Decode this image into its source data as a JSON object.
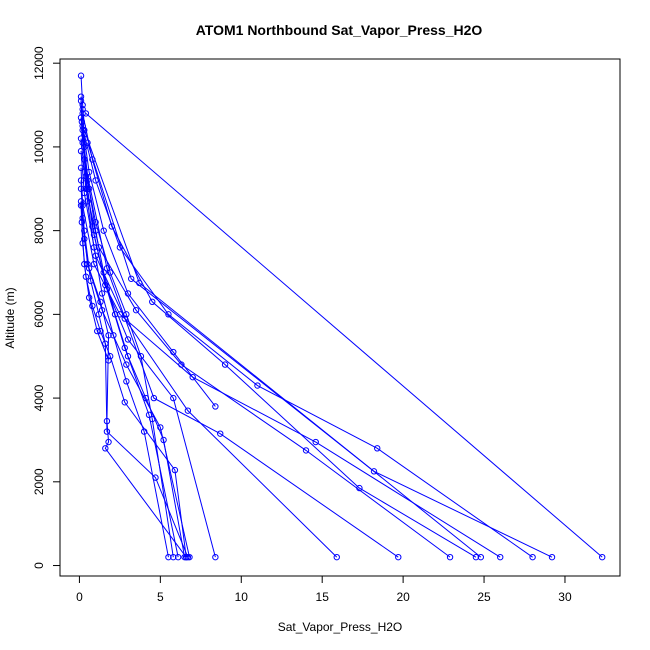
{
  "chart_data": {
    "type": "line",
    "title": "ATOM1 Northbound Sat_Vapor_Press_H2O",
    "xlabel": "Sat_Vapor_Press_H2O",
    "ylabel": "Altitude (m)",
    "xlim": [
      -1.2,
      33.4
    ],
    "ylim": [
      -250,
      12100
    ],
    "x_ticks": [
      0,
      5,
      10,
      15,
      20,
      25,
      30
    ],
    "y_ticks": [
      0,
      2000,
      4000,
      6000,
      8000,
      10000,
      12000
    ],
    "marker": "open-circle",
    "color": "#0000ff",
    "grid": false,
    "legend": "none",
    "series": [
      {
        "x": [
          0.1,
          0.2,
          0.3,
          0.6,
          1.0,
          1.5,
          2.2,
          3.0,
          4.1,
          5.2,
          6.5
        ],
        "y": [
          11700,
          11000,
          10000,
          9000,
          8000,
          7000,
          6000,
          5000,
          4000,
          3000,
          200
        ]
      },
      {
        "x": [
          0.1,
          0.15,
          0.3,
          0.5,
          0.9,
          1.4,
          2.1,
          2.9,
          4.0,
          5.5
        ],
        "y": [
          11200,
          10600,
          9700,
          8700,
          7600,
          6500,
          5500,
          4400,
          3200,
          200
        ]
      },
      {
        "x": [
          0.1,
          0.2,
          0.4,
          0.8,
          1.6,
          3.0,
          5.8,
          8.4
        ],
        "y": [
          11100,
          10400,
          9300,
          8100,
          6700,
          5400,
          4000,
          200
        ]
      },
      {
        "x": [
          0.2,
          0.3,
          0.5,
          0.9,
          1.7,
          2.8,
          4.3,
          6.1
        ],
        "y": [
          10900,
          10000,
          9000,
          7900,
          6600,
          5200,
          3600,
          200
        ]
      },
      {
        "x": [
          0.1,
          0.2,
          0.5,
          1.0,
          1.9,
          2.9,
          3.8,
          4.5,
          5.8
        ],
        "y": [
          10700,
          10100,
          9200,
          8200,
          7000,
          6000,
          5000,
          3500,
          200
        ]
      },
      {
        "x": [
          0.2,
          0.6,
          1.5,
          3.0,
          5.8,
          8.4
        ],
        "y": [
          10500,
          9400,
          8000,
          6500,
          5100,
          3800
        ]
      },
      {
        "x": [
          0.3,
          1.0,
          2.5,
          5.5,
          11.0,
          18.4,
          28.0
        ],
        "y": [
          10300,
          9200,
          7600,
          6000,
          4300,
          2800,
          200
        ]
      },
      {
        "x": [
          0.2,
          0.8,
          2.0,
          4.5,
          9.0,
          17.3,
          24.5
        ],
        "y": [
          10800,
          9700,
          8100,
          6300,
          4800,
          1850,
          200
        ]
      },
      {
        "x": [
          0.1,
          0.4,
          1.2,
          3.5,
          6.3,
          14.0,
          22.9
        ],
        "y": [
          10200,
          9000,
          7600,
          6100,
          4800,
          2750,
          200
        ]
      },
      {
        "x": [
          0.1,
          0.3,
          1.0,
          2.8,
          6.7,
          15.9
        ],
        "y": [
          9900,
          8900,
          7400,
          5900,
          3700,
          200
        ]
      },
      {
        "x": [
          0.3,
          1.7,
          4.6,
          8.7,
          19.7
        ],
        "y": [
          9700,
          7100,
          4000,
          3150,
          200
        ]
      },
      {
        "x": [
          0.1,
          0.2,
          0.9,
          2.5,
          7.0,
          14.6,
          26.0
        ],
        "y": [
          9500,
          8600,
          7200,
          6000,
          4500,
          2950,
          200
        ]
      },
      {
        "x": [
          0.5,
          3.2,
          18.2,
          29.2
        ],
        "y": [
          10100,
          6850,
          2250,
          200
        ]
      },
      {
        "x": [
          0.3,
          3.7,
          24.8
        ],
        "y": [
          10400,
          6750,
          200
        ]
      },
      {
        "x": [
          0.4,
          32.3
        ],
        "y": [
          10800,
          200
        ]
      },
      {
        "x": [
          0.1,
          0.2,
          0.5,
          1.4,
          2.9,
          5.0,
          6.8
        ],
        "y": [
          9200,
          8300,
          7200,
          6100,
          4800,
          3300,
          200
        ]
      },
      {
        "x": [
          0.1,
          0.3,
          0.6,
          1.3,
          1.8,
          1.7,
          1.8,
          1.6,
          6.6
        ],
        "y": [
          9000,
          8000,
          7100,
          6300,
          5500,
          3450,
          2950,
          2800,
          200
        ]
      },
      {
        "x": [
          0.1,
          0.3,
          0.7,
          1.2,
          1.6,
          1.7,
          4.7,
          6.7
        ],
        "y": [
          8700,
          7800,
          6800,
          6000,
          5300,
          3200,
          2100,
          200
        ]
      },
      {
        "x": [
          0.1,
          0.2,
          0.4,
          0.8,
          1.3,
          1.9,
          2.8,
          5.9,
          6.6
        ],
        "y": [
          8600,
          7700,
          6900,
          6200,
          5600,
          5000,
          3900,
          2280,
          200
        ]
      },
      {
        "x": [
          0.15,
          0.3,
          0.6,
          1.1,
          1.8
        ],
        "y": [
          8200,
          7200,
          6400,
          5600,
          4900
        ]
      }
    ]
  }
}
